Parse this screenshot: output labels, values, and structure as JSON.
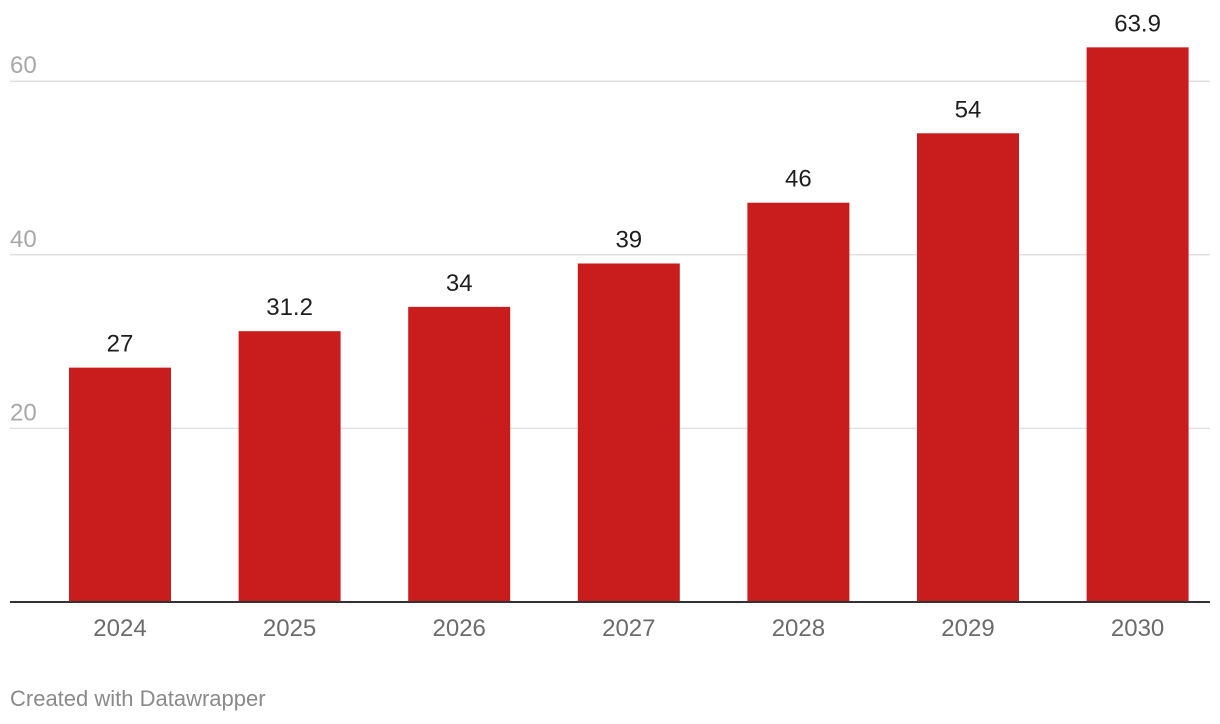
{
  "chart_data": {
    "type": "bar",
    "categories": [
      "2024",
      "2025",
      "2026",
      "2027",
      "2028",
      "2029",
      "2030"
    ],
    "values": [
      27,
      31.2,
      34,
      39,
      46,
      54,
      63.9
    ],
    "value_labels": [
      "27",
      "31.2",
      "34",
      "39",
      "46",
      "54",
      "63.9"
    ],
    "title": "",
    "xlabel": "",
    "ylabel": "",
    "ylim": [
      0,
      60
    ],
    "yticks": [
      20,
      40,
      60
    ],
    "grid": true,
    "bar_color": "#c91d1d"
  },
  "footer": {
    "credit": "Created with Datawrapper"
  }
}
